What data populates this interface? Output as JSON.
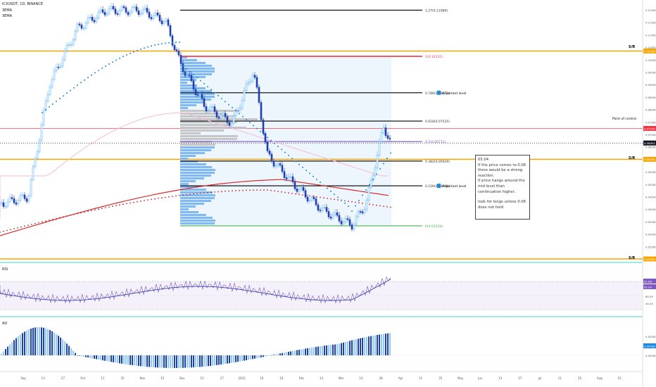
{
  "header": {
    "symbol_line": "ICXUSDT, 1D, BINANCE",
    "indicator_1": "3EMA",
    "indicator_2": "3EMA"
  },
  "panes": {
    "rsi_label": "RSI",
    "ao_label": "AO"
  },
  "note": {
    "lines": [
      "05.04",
      "If the price comes to 0.06 there would be a strong reaction.",
      "If price hangs around the mid level than continuation higher.",
      "",
      "look for longs unless 0.06 does not hold"
    ]
  },
  "annotations": {
    "sr_top": "S/R",
    "point_of_control": "Point of control",
    "sr_mid": "S/R",
    "sr_bottom": "S/R",
    "important_1": "important level",
    "important_2": "important level"
  },
  "chart_data": {
    "type": "candlestick",
    "fib_levels": [
      {
        "label": "1.27(0.11989)",
        "value": 0.11989,
        "color": "#000000"
      },
      {
        "label": "1(0.10135)",
        "value": 0.10135,
        "color": "#f23645"
      },
      {
        "label": "0.786(0.08673)",
        "value": 0.08673,
        "color": "#000000"
      },
      {
        "label": "0.618(0.07535)",
        "value": 0.07535,
        "color": "#000000"
      },
      {
        "label": "0.5(0.06712)",
        "value": 0.06712,
        "color": "#7e57c2"
      },
      {
        "label": "0.382(0.05929)",
        "value": 0.05929,
        "color": "#000000"
      },
      {
        "label": "0.236(0.04936)",
        "value": 0.04936,
        "color": "#000000"
      },
      {
        "label": "0(0.03329)",
        "value": 0.03329,
        "color": "#4caf50"
      }
    ],
    "price_labels": [
      {
        "text": "0.12000",
        "value": 0.12
      },
      {
        "text": "0.11500",
        "value": 0.115
      },
      {
        "text": "0.11000",
        "value": 0.11
      },
      {
        "text": "0.10500",
        "value": 0.105
      },
      {
        "text": "0.10000",
        "value": 0.1
      },
      {
        "text": "0.09500",
        "value": 0.095
      },
      {
        "text": "0.09000",
        "value": 0.09
      },
      {
        "text": "0.08500",
        "value": 0.085
      },
      {
        "text": "0.08000",
        "value": 0.08
      },
      {
        "text": "0.07500",
        "value": 0.075
      },
      {
        "text": "0.07000",
        "value": 0.07
      },
      {
        "text": "0.06500",
        "value": 0.065
      },
      {
        "text": "0.06000",
        "value": 0.06
      },
      {
        "text": "0.05500",
        "value": 0.055
      },
      {
        "text": "0.05000",
        "value": 0.05
      },
      {
        "text": "0.04500",
        "value": 0.045
      },
      {
        "text": "0.04000",
        "value": 0.04
      },
      {
        "text": "0.03500",
        "value": 0.035
      },
      {
        "text": "0.03000",
        "value": 0.03
      },
      {
        "text": "0.02500",
        "value": 0.025
      },
      {
        "text": "0.02000",
        "value": 0.02
      }
    ],
    "price_tags": [
      {
        "text": "0.10346",
        "value": 0.10346,
        "color": "#f7a600"
      },
      {
        "text": "0.07239",
        "value": 0.07239,
        "color": "#f23645"
      },
      {
        "text": "0.06654",
        "value": 0.06654,
        "color": "#131722"
      },
      {
        "text": "0.06000",
        "value": 0.06,
        "color": "#f7a600"
      },
      {
        "text": "0.02000",
        "value": 0.02,
        "color": "#f7a600"
      }
    ],
    "rsi": {
      "labels": [
        "60.00",
        "40.00"
      ],
      "tags": [
        {
          "text": "62.88",
          "color": "#7e57c2"
        },
        {
          "text": "62.94",
          "color": "#7e57c2"
        }
      ]
    },
    "ao": {
      "labels": [
        "0.00500",
        "0.00000"
      ],
      "tag": "0.00399"
    },
    "x_labels": [
      "Sep",
      "13",
      "27",
      "Oct",
      "11",
      "25",
      "Nov",
      "15",
      "Dec",
      "13",
      "27",
      "2022",
      "10",
      "24",
      "Feb",
      "14",
      "Mar",
      "14",
      "28",
      "Apr",
      "11",
      "25",
      "May",
      "Jun",
      "13",
      "27",
      "Jul",
      "11",
      "25",
      "Aug",
      "15"
    ]
  }
}
